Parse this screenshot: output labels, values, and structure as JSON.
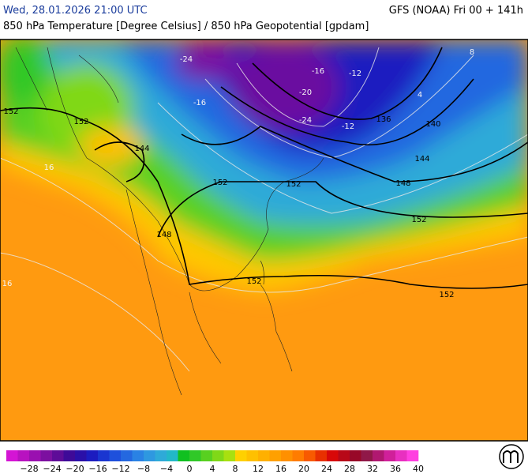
{
  "header": {
    "datetime": "Wed, 28.01.2026 21:00 UTC",
    "model": "GFS (NOAA) Fri 00 + 141h",
    "subtitle": "850 hPa Temperature [Degree Celsius] / 850 hPa Geopotential [gpdam]"
  },
  "map": {
    "contour_labels": [
      "152",
      "152",
      "152",
      "152",
      "152",
      "152",
      "152",
      "148",
      "148",
      "144",
      "144",
      "140",
      "136",
      "-24",
      "-24",
      "-20",
      "-16",
      "-12",
      "-12",
      "-16",
      "4",
      "8",
      "16",
      "16"
    ]
  },
  "legend": {
    "colors": [
      "#d415d4",
      "#b812c0",
      "#9a10b0",
      "#7c10a0",
      "#5e0c98",
      "#3e0a98",
      "#2a10a8",
      "#1c1cc0",
      "#1a36d0",
      "#1e50dc",
      "#2468e0",
      "#2a82e4",
      "#2e98e0",
      "#2eaad8",
      "#22b8c8",
      "#10c020",
      "#30c828",
      "#58d020",
      "#80d818",
      "#a8e010",
      "#ffd000",
      "#ffc000",
      "#ffb000",
      "#ffa000",
      "#ff9000",
      "#ff7c00",
      "#f85a00",
      "#e83000",
      "#d80808",
      "#b80818",
      "#980828",
      "#901848",
      "#b01870",
      "#d0209a",
      "#e830c0",
      "#ff40e0"
    ],
    "labels": [
      "−28",
      "−24",
      "−20",
      "−16",
      "−12",
      "−8",
      "−4",
      "0",
      "4",
      "8",
      "12",
      "16",
      "20",
      "24",
      "28",
      "32",
      "36",
      "40"
    ]
  }
}
